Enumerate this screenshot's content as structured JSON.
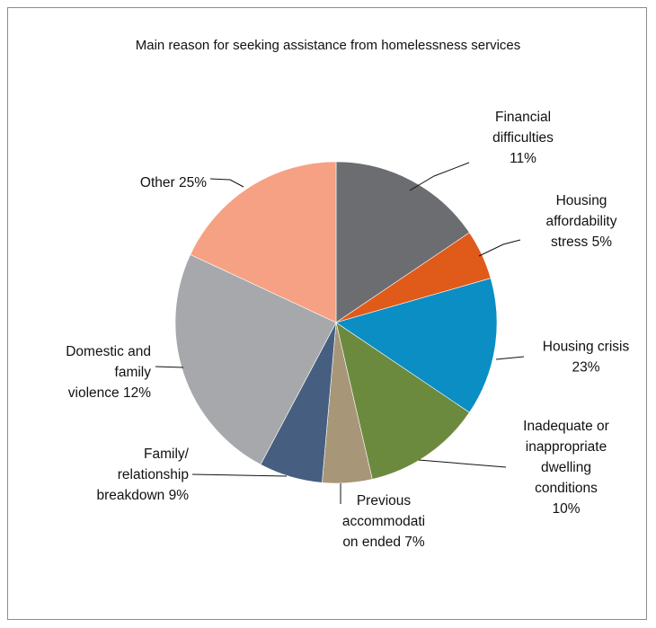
{
  "chart_data": {
    "type": "pie",
    "title": "Main reason for seeking assistance from homelessness services",
    "slices": [
      {
        "category": "Financial difficulties",
        "value": 11,
        "label_lines": [
          "Financial",
          "difficulties",
          "11%"
        ],
        "color": "#6c6d70"
      },
      {
        "category": "Housing affordability stress",
        "value": 5,
        "label_lines": [
          "Housing",
          "affordability",
          "stress 5%"
        ],
        "color": "#e05a1a"
      },
      {
        "category": "Housing crisis",
        "value": 23,
        "label_lines": [
          "Housing crisis",
          "23%"
        ],
        "color": "#0a8ec4"
      },
      {
        "category": "Inadequate or inappropriate dwelling conditions",
        "value": 10,
        "label_lines": [
          "Inadequate or",
          "inappropriate",
          "dwelling",
          "conditions",
          "10%"
        ],
        "color": "#6c8a3e"
      },
      {
        "category": "Previous accommodation ended",
        "value": 7,
        "label_lines": [
          "Previous",
          "accommodati",
          "on ended 7%"
        ],
        "color": "#a89679"
      },
      {
        "category": "Family/ relationship breakdown",
        "value": 9,
        "label_lines": [
          "Family/",
          "relationship",
          "breakdown 9%"
        ],
        "color": "#465e80"
      },
      {
        "category": "Domestic and family violence",
        "value": 12,
        "label_lines": [
          "Domestic and",
          "family",
          "violence 12%"
        ],
        "color": "#a6a8ab"
      },
      {
        "category": "Other",
        "value": 25,
        "label_lines": [
          "Other 25%"
        ],
        "color": "#f6a184"
      }
    ]
  }
}
